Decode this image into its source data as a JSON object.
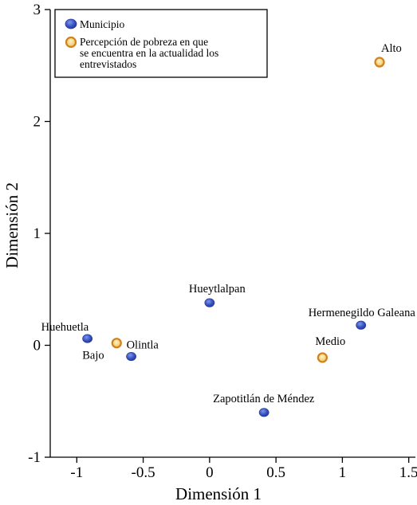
{
  "chart_data": {
    "type": "scatter",
    "xlabel": "Dimensión 1",
    "ylabel": "Dimensión 2",
    "xlim": [
      -1.2,
      1.55
    ],
    "ylim": [
      -1,
      3
    ],
    "xticks": [
      "-1",
      "-0.5",
      "0",
      "0.5",
      "1",
      "1.5"
    ],
    "yticks": [
      "-1",
      "0",
      "1",
      "2",
      "3"
    ],
    "grid": false,
    "legend_position": "top-left",
    "series": [
      {
        "name": "Municipio",
        "color": "#3a55c4",
        "points": [
          {
            "label": "Huehuetla",
            "x": -0.92,
            "y": 0.06
          },
          {
            "label": "Olintla",
            "x": -0.59,
            "y": -0.1
          },
          {
            "label": "Hueytlalpan",
            "x": 0.0,
            "y": 0.38
          },
          {
            "label": "Hermenegildo Galeana",
            "x": 1.14,
            "y": 0.18
          },
          {
            "label": "Zapotitlán de Méndez",
            "x": 0.41,
            "y": -0.6
          }
        ]
      },
      {
        "name": "Percepción de pobreza en que se encuentra en la actualidad los entrevistados",
        "legend_lines": [
          "Percepción de pobreza en que",
          "se encuentra en la actualidad los",
          "entrevistados"
        ],
        "color": "#f3d27a",
        "edge_color": "#d4801e",
        "points": [
          {
            "label": "Bajo",
            "x": -0.7,
            "y": 0.02
          },
          {
            "label": "Medio",
            "x": 0.85,
            "y": -0.11
          },
          {
            "label": "Alto",
            "x": 1.28,
            "y": 2.53
          }
        ]
      }
    ]
  }
}
